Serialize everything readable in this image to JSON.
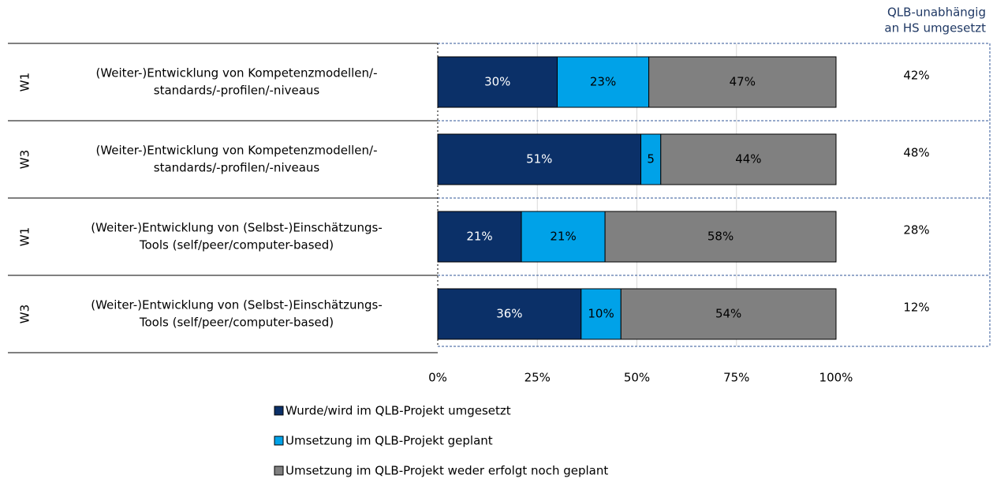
{
  "chart_data": {
    "type": "stacked-bar-horizontal",
    "groups": [
      "W1",
      "W3",
      "W1",
      "W3"
    ],
    "categories": [
      [
        "(Weiter-)Entwicklung von Kompetenzmodellen/-",
        "standards/-profilen/-niveaus"
      ],
      [
        "(Weiter-)Entwicklung von Kompetenzmodellen/-",
        "standards/-profilen/-niveaus"
      ],
      [
        "(Weiter-)Entwicklung von (Selbst-)Einschätzungs-",
        "Tools (self/peer/computer-based)"
      ],
      [
        "(Weiter-)Entwicklung von (Selbst-)Einschätzungs-",
        "Tools (self/peer/computer-based)"
      ]
    ],
    "series": [
      {
        "name": "Wurde/wird im QLB-Projekt umgesetzt",
        "color": "#0b3068",
        "values": [
          30,
          51,
          21,
          36
        ],
        "value_labels": [
          "30%",
          "51%",
          "21%",
          "36%"
        ]
      },
      {
        "name": "Umsetzung im QLB-Projekt geplant",
        "color": "#00a2e8",
        "values": [
          23,
          5,
          21,
          10
        ],
        "value_labels": [
          "23%",
          "5",
          "21%",
          "10%"
        ]
      },
      {
        "name": "Umsetzung im QLB-Projekt weder erfolgt noch geplant",
        "color": "#808080",
        "values": [
          47,
          44,
          58,
          54
        ],
        "value_labels": [
          "47%",
          "44%",
          "58%",
          "54%"
        ]
      }
    ],
    "side_column": {
      "title": [
        "QLB-unabhängig",
        "an HS umgesetzt"
      ],
      "values": [
        42,
        48,
        28,
        12
      ],
      "value_labels": [
        "42%",
        "48%",
        "28%",
        "12%"
      ]
    },
    "xlim": [
      0,
      100
    ],
    "xticks": [
      {
        "value": 0,
        "label": "0%"
      },
      {
        "value": 25,
        "label": "25%"
      },
      {
        "value": 50,
        "label": "50%"
      },
      {
        "value": 75,
        "label": "75%"
      },
      {
        "value": 100,
        "label": "100%"
      }
    ],
    "grid": true
  }
}
